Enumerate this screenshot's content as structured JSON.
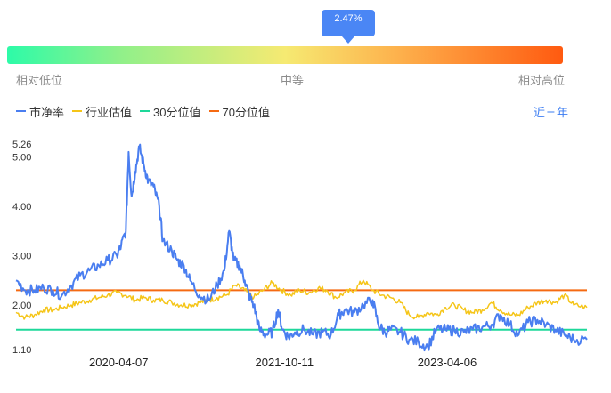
{
  "tooltip": {
    "value": "2.47%"
  },
  "gauge": {
    "percentile": 2.47,
    "labels": {
      "low": "相对低位",
      "mid": "中等",
      "high": "相对高位"
    },
    "colors": [
      "#2dfba8",
      "#8ff08a",
      "#f6ea72",
      "#fdb24d",
      "#ff5a10"
    ]
  },
  "legend": [
    {
      "label": "市净率",
      "color": "#4a7ef0"
    },
    {
      "label": "行业估值",
      "color": "#f5c518"
    },
    {
      "label": "30分位值",
      "color": "#1ed89a"
    },
    {
      "label": "70分位值",
      "color": "#f56a12"
    }
  ],
  "range_link": "近三年",
  "chart_data": {
    "type": "line",
    "title": "",
    "xlabel": "",
    "ylabel": "",
    "ylim": [
      1.1,
      5.26
    ],
    "y_ticks": [
      "5.26",
      "5.00",
      "4.00",
      "3.00",
      "2.00",
      "1.10"
    ],
    "x_tick_labels": [
      "2020-04-07",
      "2021-10-11",
      "2023-04-06"
    ],
    "grid": false,
    "legend_position": "top-left",
    "x_range": [
      "2019-05-01",
      "2024-07-15"
    ],
    "series": [
      {
        "name": "市净率",
        "color": "#4a7ef0",
        "points": [
          [
            "2019-05-01",
            2.5
          ],
          [
            "2019-06-01",
            2.3
          ],
          [
            "2019-07-01",
            2.3
          ],
          [
            "2019-08-01",
            2.35
          ],
          [
            "2019-09-01",
            2.3
          ],
          [
            "2019-10-01",
            2.2
          ],
          [
            "2019-11-01",
            2.4
          ],
          [
            "2019-12-01",
            2.6
          ],
          [
            "2020-01-01",
            2.7
          ],
          [
            "2020-02-01",
            2.8
          ],
          [
            "2020-03-01",
            2.9
          ],
          [
            "2020-04-01",
            3.0
          ],
          [
            "2020-04-15",
            3.2
          ],
          [
            "2020-05-01",
            3.5
          ],
          [
            "2020-05-10",
            5.1
          ],
          [
            "2020-05-20",
            4.2
          ],
          [
            "2020-06-01",
            4.7
          ],
          [
            "2020-06-15",
            5.2
          ],
          [
            "2020-07-01",
            4.8
          ],
          [
            "2020-07-15",
            4.5
          ],
          [
            "2020-08-01",
            4.4
          ],
          [
            "2020-08-20",
            4.0
          ],
          [
            "2020-09-01",
            3.3
          ],
          [
            "2020-10-01",
            3.1
          ],
          [
            "2020-10-20",
            2.9
          ],
          [
            "2020-11-10",
            2.8
          ],
          [
            "2020-12-01",
            2.5
          ],
          [
            "2021-01-01",
            2.2
          ],
          [
            "2021-02-01",
            2.1
          ],
          [
            "2021-03-01",
            2.4
          ],
          [
            "2021-03-25",
            2.7
          ],
          [
            "2021-04-10",
            3.5
          ],
          [
            "2021-04-25",
            2.9
          ],
          [
            "2021-05-15",
            2.8
          ],
          [
            "2021-06-01",
            2.5
          ],
          [
            "2021-06-15",
            2.2
          ],
          [
            "2021-07-01",
            2.0
          ],
          [
            "2021-07-20",
            1.5
          ],
          [
            "2021-08-10",
            1.4
          ],
          [
            "2021-09-01",
            1.45
          ],
          [
            "2021-09-20",
            1.9
          ],
          [
            "2021-10-05",
            1.5
          ],
          [
            "2021-10-25",
            1.35
          ],
          [
            "2021-11-15",
            1.45
          ],
          [
            "2021-12-15",
            1.5
          ],
          [
            "2022-01-15",
            1.4
          ],
          [
            "2022-02-15",
            1.45
          ],
          [
            "2022-03-15",
            1.4
          ],
          [
            "2022-04-10",
            1.8
          ],
          [
            "2022-05-01",
            1.9
          ],
          [
            "2022-06-01",
            1.85
          ],
          [
            "2022-07-01",
            2.0
          ],
          [
            "2022-08-01",
            2.1
          ],
          [
            "2022-08-20",
            1.6
          ],
          [
            "2022-09-10",
            1.45
          ],
          [
            "2022-10-01",
            1.5
          ],
          [
            "2022-11-01",
            1.45
          ],
          [
            "2022-12-01",
            1.3
          ],
          [
            "2023-01-01",
            1.25
          ],
          [
            "2023-02-01",
            1.15
          ],
          [
            "2023-03-01",
            1.5
          ],
          [
            "2023-04-01",
            1.5
          ],
          [
            "2023-05-01",
            1.48
          ],
          [
            "2023-06-01",
            1.45
          ],
          [
            "2023-07-01",
            1.5
          ],
          [
            "2023-08-01",
            1.55
          ],
          [
            "2023-09-01",
            1.6
          ],
          [
            "2023-10-01",
            1.8
          ],
          [
            "2023-11-01",
            1.6
          ],
          [
            "2023-12-01",
            1.4
          ],
          [
            "2024-01-01",
            1.65
          ],
          [
            "2024-02-01",
            1.7
          ],
          [
            "2024-03-01",
            1.6
          ],
          [
            "2024-04-01",
            1.5
          ],
          [
            "2024-05-01",
            1.4
          ],
          [
            "2024-06-01",
            1.3
          ],
          [
            "2024-07-15",
            1.3
          ]
        ]
      },
      {
        "name": "行业估值",
        "color": "#f5c518",
        "points": [
          [
            "2019-05-01",
            1.85
          ],
          [
            "2019-06-01",
            1.75
          ],
          [
            "2019-07-01",
            1.8
          ],
          [
            "2019-08-01",
            1.9
          ],
          [
            "2019-09-01",
            1.9
          ],
          [
            "2019-10-01",
            1.95
          ],
          [
            "2019-11-01",
            2.0
          ],
          [
            "2019-12-01",
            2.05
          ],
          [
            "2020-01-01",
            2.1
          ],
          [
            "2020-02-01",
            2.15
          ],
          [
            "2020-03-01",
            2.2
          ],
          [
            "2020-04-01",
            2.25
          ],
          [
            "2020-05-01",
            2.2
          ],
          [
            "2020-06-01",
            2.1
          ],
          [
            "2020-07-01",
            2.15
          ],
          [
            "2020-08-01",
            2.1
          ],
          [
            "2020-09-01",
            2.1
          ],
          [
            "2020-10-01",
            2.05
          ],
          [
            "2020-11-01",
            2.0
          ],
          [
            "2020-12-01",
            2.0
          ],
          [
            "2021-01-01",
            2.05
          ],
          [
            "2021-02-01",
            2.1
          ],
          [
            "2021-03-01",
            2.15
          ],
          [
            "2021-04-01",
            2.2
          ],
          [
            "2021-05-01",
            2.4
          ],
          [
            "2021-06-01",
            2.3
          ],
          [
            "2021-07-01",
            2.15
          ],
          [
            "2021-08-01",
            2.3
          ],
          [
            "2021-09-01",
            2.45
          ],
          [
            "2021-10-01",
            2.3
          ],
          [
            "2021-11-01",
            2.2
          ],
          [
            "2021-12-01",
            2.3
          ],
          [
            "2022-01-01",
            2.25
          ],
          [
            "2022-02-01",
            2.35
          ],
          [
            "2022-03-01",
            2.3
          ],
          [
            "2022-04-01",
            2.15
          ],
          [
            "2022-05-01",
            2.25
          ],
          [
            "2022-06-01",
            2.3
          ],
          [
            "2022-07-01",
            2.5
          ],
          [
            "2022-08-01",
            2.3
          ],
          [
            "2022-09-01",
            2.2
          ],
          [
            "2022-10-01",
            2.15
          ],
          [
            "2022-11-01",
            2.05
          ],
          [
            "2022-12-01",
            1.8
          ],
          [
            "2023-01-01",
            1.75
          ],
          [
            "2023-02-01",
            1.85
          ],
          [
            "2023-03-01",
            1.8
          ],
          [
            "2023-04-01",
            1.95
          ],
          [
            "2023-05-01",
            2.0
          ],
          [
            "2023-06-01",
            1.9
          ],
          [
            "2023-07-01",
            1.85
          ],
          [
            "2023-08-01",
            1.9
          ],
          [
            "2023-09-01",
            2.05
          ],
          [
            "2023-10-01",
            1.9
          ],
          [
            "2023-11-01",
            1.8
          ],
          [
            "2023-12-01",
            1.8
          ],
          [
            "2024-01-01",
            1.95
          ],
          [
            "2024-02-01",
            2.05
          ],
          [
            "2024-03-01",
            2.1
          ],
          [
            "2024-04-01",
            2.05
          ],
          [
            "2024-05-01",
            2.2
          ],
          [
            "2024-06-01",
            2.0
          ],
          [
            "2024-07-15",
            1.95
          ]
        ]
      },
      {
        "name": "30分位值",
        "color": "#1ed89a",
        "value": 1.5
      },
      {
        "name": "70分位值",
        "color": "#f56a12",
        "value": 2.3
      }
    ]
  }
}
